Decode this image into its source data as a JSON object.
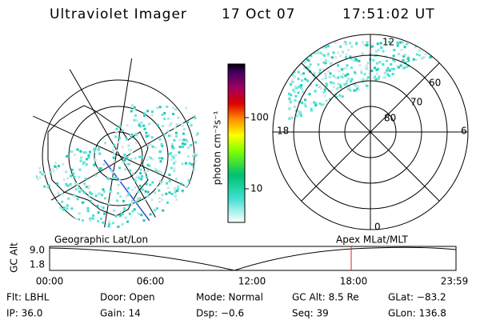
{
  "header": {
    "title": "Ultraviolet Imager",
    "date": "17 Oct 07",
    "time": "17:51:02 UT"
  },
  "colorbar": {
    "label": "photon cm⁻²s⁻¹",
    "ticks": [
      "100",
      "10"
    ]
  },
  "polar": {
    "mlt_labels": [
      "12",
      "18",
      "6",
      "0"
    ],
    "mlat_labels": [
      "60",
      "70",
      "80"
    ]
  },
  "timeline": {
    "left_title": "Geographic Lat/Lon",
    "right_title": "Apex MLat/MLT",
    "ylabel": "GC Alt",
    "yticks": [
      "9.0",
      "1.8"
    ],
    "xticks": [
      "00:00",
      "06:00",
      "12:00",
      "18:00",
      "23:59"
    ]
  },
  "footer": {
    "rows": [
      [
        "Flt: LBHL",
        "Door: Open",
        "Mode: Normal",
        "GC Alt: 8.5 Re",
        "GLat: −83.2"
      ],
      [
        "IP: 36.0",
        "Gain: 14",
        "Dsp:   −0.6",
        "Seq: 39",
        "GLon: 136.8"
      ]
    ]
  }
}
